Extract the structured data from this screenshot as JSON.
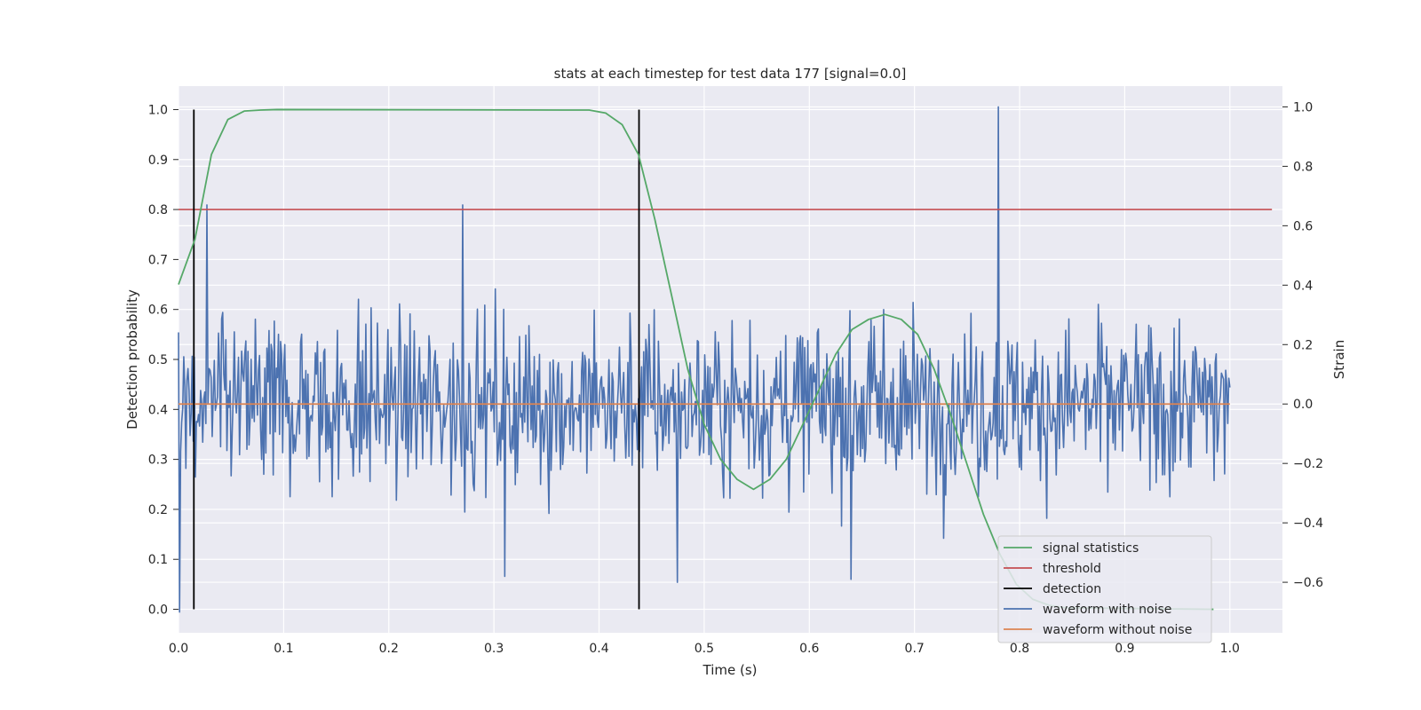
{
  "chart_data": {
    "type": "line",
    "title": "stats at each timestep for test data 177 [signal=0.0]",
    "xlabel": "Time (s)",
    "ylabel": "Detection probability",
    "ylabel_right": "Strain",
    "xlim": [
      0.0,
      1.05
    ],
    "ylim": [
      -0.047,
      1.047
    ],
    "ylim_right": [
      -0.77,
      1.07
    ],
    "x_ticks": [
      "0.0",
      "0.1",
      "0.2",
      "0.3",
      "0.4",
      "0.5",
      "0.6",
      "0.7",
      "0.8",
      "0.9",
      "1.0"
    ],
    "y_ticks": [
      "0.0",
      "0.1",
      "0.2",
      "0.3",
      "0.4",
      "0.5",
      "0.6",
      "0.7",
      "0.8",
      "0.9",
      "1.0"
    ],
    "y_ticks_right": [
      "−0.6",
      "−0.4",
      "−0.2",
      "0.0",
      "0.2",
      "0.4",
      "0.6",
      "0.8",
      "1.0"
    ],
    "grid": true,
    "legend_position": "lower-right",
    "colors": {
      "signal_statistics": "#55a868",
      "threshold": "#c44e52",
      "detection": "#000000",
      "waveform_with_noise": "#4c72b0",
      "waveform_without_noise": "#dd8452",
      "plot_bg": "#eaeaf2",
      "grid": "#ffffff"
    },
    "legend": [
      "signal statistics",
      "threshold",
      "detection",
      "waveform with noise",
      "waveform without noise"
    ],
    "series": [
      {
        "name": "signal statistics",
        "axis": "left",
        "x": [
          0.0,
          0.0156,
          0.0313,
          0.0469,
          0.0625,
          0.0781,
          0.0938,
          0.3906,
          0.4063,
          0.4219,
          0.4375,
          0.4531,
          0.4688,
          0.4844,
          0.5,
          0.5156,
          0.5313,
          0.5469,
          0.5625,
          0.5781,
          0.5938,
          0.6094,
          0.625,
          0.6406,
          0.6563,
          0.6719,
          0.6875,
          0.7031,
          0.7188,
          0.7344,
          0.75,
          0.7656,
          0.7813,
          0.7969,
          0.8125,
          0.8281,
          0.8438,
          0.9844
        ],
        "y": [
          0.65,
          0.74,
          0.91,
          0.98,
          0.997,
          0.999,
          1.0,
          0.999,
          0.993,
          0.97,
          0.91,
          0.78,
          0.63,
          0.48,
          0.37,
          0.3,
          0.26,
          0.24,
          0.26,
          0.3,
          0.37,
          0.44,
          0.51,
          0.56,
          0.58,
          0.59,
          0.58,
          0.55,
          0.48,
          0.39,
          0.29,
          0.19,
          0.11,
          0.05,
          0.02,
          0.008,
          0.003,
          0.0
        ]
      },
      {
        "name": "threshold",
        "axis": "left",
        "x": [
          0.0,
          1.04
        ],
        "y": [
          0.8,
          0.8
        ]
      },
      {
        "name": "detection",
        "axis": "left",
        "lines_x": [
          0.0146,
          0.438
        ],
        "y_range": [
          0.0,
          1.0
        ]
      },
      {
        "name": "waveform without noise",
        "axis": "right",
        "x": [
          0.0,
          1.0
        ],
        "y": [
          0.0,
          0.0
        ]
      },
      {
        "name": "waveform with noise",
        "axis": "right",
        "x_range": [
          0.0,
          1.0
        ],
        "n_points": 1000,
        "y_min": -0.7,
        "y_max": 1.0,
        "note_peaks": [
          {
            "x": 0.001,
            "y": -0.7
          },
          {
            "x": 0.027,
            "y": 0.67
          },
          {
            "x": 0.27,
            "y": 0.67
          },
          {
            "x": 0.78,
            "y": 1.0
          },
          {
            "x": 0.474,
            "y": -0.6
          },
          {
            "x": 0.64,
            "y": -0.59
          },
          {
            "x": 0.31,
            "y": -0.58
          }
        ]
      }
    ]
  }
}
